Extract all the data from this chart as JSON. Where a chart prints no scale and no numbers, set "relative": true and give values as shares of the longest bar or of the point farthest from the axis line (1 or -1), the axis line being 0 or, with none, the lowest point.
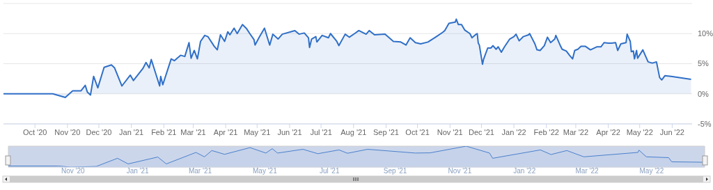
{
  "chart_data": [
    {
      "type": "area",
      "color": "#2f6fc7",
      "x": [
        "2020-09-01",
        "2020-10-18",
        "2020-10-30",
        "2020-11-06",
        "2020-11-14",
        "2020-11-18",
        "2020-11-20",
        "2020-11-23",
        "2020-11-26",
        "2020-11-30",
        "2020-12-06",
        "2020-12-13",
        "2020-12-16",
        "2020-12-23",
        "2020-12-31",
        "2021-01-03",
        "2021-01-12",
        "2021-01-15",
        "2021-01-18",
        "2021-01-20",
        "2021-01-28",
        "2021-01-29",
        "2021-01-31",
        "2021-02-08",
        "2021-02-11",
        "2021-02-17",
        "2021-02-21",
        "2021-02-25",
        "2021-02-27",
        "2021-03-02",
        "2021-03-05",
        "2021-03-08",
        "2021-03-12",
        "2021-03-15",
        "2021-03-21",
        "2021-03-24",
        "2021-03-27",
        "2021-03-31",
        "2021-04-03",
        "2021-04-05",
        "2021-04-09",
        "2021-04-12",
        "2021-04-17",
        "2021-04-21",
        "2021-04-24",
        "2021-04-28",
        "2021-04-29",
        "2021-05-03",
        "2021-05-08",
        "2021-05-13",
        "2021-05-16",
        "2021-05-21",
        "2021-05-25",
        "2021-06-06",
        "2021-06-10",
        "2021-06-15",
        "2021-06-19",
        "2021-06-20",
        "2021-06-22",
        "2021-06-26",
        "2021-06-27",
        "2021-07-02",
        "2021-07-08",
        "2021-07-10",
        "2021-07-16",
        "2021-07-18",
        "2021-07-24",
        "2021-07-28",
        "2021-08-02",
        "2021-08-06",
        "2021-08-13",
        "2021-08-16",
        "2021-08-21",
        "2021-08-31",
        "2021-09-08",
        "2021-09-15",
        "2021-09-20",
        "2021-09-24",
        "2021-09-29",
        "2021-10-04",
        "2021-10-11",
        "2021-10-19",
        "2021-10-25",
        "2021-10-27",
        "2021-10-31",
        "2021-11-06",
        "2021-11-07",
        "2021-11-09",
        "2021-11-12",
        "2021-11-15",
        "2021-11-20",
        "2021-11-22",
        "2021-11-26",
        "2021-11-27",
        "2021-11-28",
        "2021-11-29",
        "2021-12-02",
        "2021-12-03",
        "2021-12-07",
        "2021-12-10",
        "2021-12-12",
        "2021-12-15",
        "2021-12-17",
        "2021-12-20",
        "2021-12-23",
        "2021-12-28",
        "2022-01-01",
        "2022-01-03",
        "2022-01-06",
        "2022-01-10",
        "2022-01-15",
        "2022-01-16",
        "2022-01-21",
        "2022-01-23",
        "2022-01-26",
        "2022-01-30",
        "2022-02-02",
        "2022-02-05",
        "2022-02-09",
        "2022-02-10",
        "2022-02-14",
        "2022-02-16",
        "2022-02-20",
        "2022-02-23",
        "2022-02-26",
        "2022-02-28",
        "2022-03-03",
        "2022-03-06",
        "2022-03-10",
        "2022-03-15",
        "2022-03-21",
        "2022-03-25",
        "2022-03-28",
        "2022-04-01",
        "2022-04-04",
        "2022-04-08",
        "2022-04-10",
        "2022-04-13",
        "2022-04-18",
        "2022-04-19",
        "2022-04-22",
        "2022-04-23",
        "2022-04-25",
        "2022-04-26",
        "2022-04-28",
        "2022-04-29",
        "2022-05-04",
        "2022-05-06",
        "2022-05-09",
        "2022-05-13",
        "2022-05-17",
        "2022-05-20",
        "2022-05-22",
        "2022-05-25",
        "2022-05-31",
        "2022-06-19"
      ],
      "values": [
        0,
        0,
        -0.6,
        0.5,
        0.5,
        1.4,
        0.3,
        -0.2,
        2.9,
        1.0,
        4.4,
        4.8,
        4.3,
        1.3,
        3.1,
        2.2,
        4.2,
        5.2,
        4.3,
        5.7,
        1.3,
        2.9,
        1.5,
        5.8,
        5.5,
        6.4,
        6.2,
        8.5,
        5.9,
        7.2,
        5.8,
        8.7,
        9.7,
        9.5,
        7.9,
        7.3,
        9.8,
        8.7,
        10.3,
        9.8,
        10.9,
        10.0,
        11.5,
        10.8,
        10.0,
        9.0,
        8.1,
        9.4,
        10.9,
        8.1,
        9.9,
        9.1,
        9.9,
        10.5,
        9.9,
        10.1,
        9.3,
        7.7,
        9.1,
        9.5,
        8.6,
        9.7,
        9.3,
        10.0,
        8.7,
        8.0,
        9.9,
        9.4,
        10.0,
        10.5,
        9.9,
        10.5,
        9.8,
        9.9,
        8.7,
        8.6,
        8.1,
        9.3,
        8.5,
        8.3,
        8.6,
        9.5,
        10.2,
        10.5,
        11.7,
        11.9,
        12.4,
        11.5,
        11.5,
        10.6,
        10.0,
        9.3,
        9.9,
        10.0,
        8.4,
        8.1,
        4.9,
        5.7,
        7.6,
        7.6,
        8.0,
        7.4,
        7.8,
        6.9,
        7.8,
        9.1,
        9.5,
        9.9,
        8.8,
        9.5,
        9.8,
        10.0,
        8.3,
        7.3,
        7.2,
        8.0,
        9.4,
        8.5,
        9.1,
        9.7,
        8.1,
        7.4,
        7.1,
        6.4,
        5.8,
        7.2,
        7.4,
        7.9,
        7.9,
        7.3,
        7.8,
        7.8,
        8.5,
        8.4,
        8.4,
        8.5,
        7.2,
        8.3,
        8.5,
        9.9,
        8.7,
        7.0,
        7.1,
        5.8,
        7.2,
        5.9,
        7.3,
        6.5,
        5.3,
        5.1,
        5.3,
        2.7,
        2.3,
        3.0,
        2.9,
        2.4
      ],
      "xlim": [
        "2020-09-01",
        "2022-06-20"
      ],
      "xticks": [
        {
          "value": "2020-10-01",
          "label": "Oct '20"
        },
        {
          "value": "2020-11-01",
          "label": "Nov '20"
        },
        {
          "value": "2020-12-01",
          "label": "Dec '20"
        },
        {
          "value": "2021-01-01",
          "label": "Jan '21"
        },
        {
          "value": "2021-02-01",
          "label": "Feb '21"
        },
        {
          "value": "2021-03-01",
          "label": "Mar '21"
        },
        {
          "value": "2021-04-01",
          "label": "Apr '21"
        },
        {
          "value": "2021-05-01",
          "label": "May '21"
        },
        {
          "value": "2021-06-01",
          "label": "Jun '21"
        },
        {
          "value": "2021-07-01",
          "label": "Jul '21"
        },
        {
          "value": "2021-08-01",
          "label": "Aug '21"
        },
        {
          "value": "2021-09-01",
          "label": "Sep '21"
        },
        {
          "value": "2021-10-01",
          "label": "Oct '21"
        },
        {
          "value": "2021-11-01",
          "label": "Nov '21"
        },
        {
          "value": "2021-12-01",
          "label": "Dec '21"
        },
        {
          "value": "2022-01-01",
          "label": "Jan '22"
        },
        {
          "value": "2022-02-01",
          "label": "Feb '22"
        },
        {
          "value": "2022-03-01",
          "label": "Mar '22"
        },
        {
          "value": "2022-04-01",
          "label": "Apr '22"
        },
        {
          "value": "2022-05-01",
          "label": "May '22"
        },
        {
          "value": "2022-06-01",
          "label": "Jun '22"
        }
      ],
      "ylim": [
        -5,
        15
      ],
      "yticks": [
        {
          "value": -5,
          "label": "-5%"
        },
        {
          "value": 0,
          "label": "0%"
        },
        {
          "value": 5,
          "label": "5%"
        },
        {
          "value": 10,
          "label": "10%"
        },
        {
          "value": 15,
          "label": null
        }
      ],
      "grid": "y"
    },
    {
      "type": "area",
      "color": "#4a80cc",
      "relative": true,
      "tick_labels": "x",
      "x": [
        "2020-09-01",
        "2020-10-18",
        "2020-10-30",
        "2020-11-23",
        "2020-12-13",
        "2020-12-23",
        "2021-01-20",
        "2021-01-28",
        "2021-02-25",
        "2021-03-05",
        "2021-03-12",
        "2021-03-24",
        "2021-04-17",
        "2021-05-02",
        "2021-05-08",
        "2021-05-13",
        "2021-06-06",
        "2021-06-20",
        "2021-07-10",
        "2021-07-18",
        "2021-08-06",
        "2021-09-20",
        "2021-10-04",
        "2021-11-07",
        "2021-11-29",
        "2021-12-02",
        "2021-12-20",
        "2022-01-16",
        "2022-01-26",
        "2022-02-10",
        "2022-02-26",
        "2022-04-18",
        "2022-04-19",
        "2022-04-26",
        "2022-05-17",
        "2022-05-20",
        "2022-06-19"
      ],
      "values": [
        0.05,
        0.05,
        0,
        0.03,
        0.42,
        0.15,
        0.48,
        0.15,
        0.7,
        0.49,
        0.79,
        0.61,
        0.93,
        0.67,
        0.88,
        0.67,
        0.85,
        0.64,
        0.82,
        0.66,
        0.85,
        0.67,
        0.68,
        1,
        0.67,
        0.42,
        0.58,
        0.82,
        0.6,
        0.79,
        0.49,
        0.7,
        0.81,
        0.49,
        0.45,
        0.25,
        0.23
      ],
      "xlim": [
        "2020-09-01",
        "2022-06-20"
      ],
      "xticks": [
        {
          "value": "2020-11-01",
          "label": "Nov '20"
        },
        {
          "value": "2021-01-01",
          "label": "Jan '21"
        },
        {
          "value": "2021-03-01",
          "label": "Mar '21"
        },
        {
          "value": "2021-05-01",
          "label": "May '21"
        },
        {
          "value": "2021-07-01",
          "label": "Jul '21"
        },
        {
          "value": "2021-09-01",
          "label": "Sep '21"
        },
        {
          "value": "2021-11-01",
          "label": "Nov '21"
        },
        {
          "value": "2022-01-01",
          "label": "Jan '22"
        },
        {
          "value": "2022-03-01",
          "label": "Mar '22"
        },
        {
          "value": "2022-05-01",
          "label": "May '22"
        }
      ],
      "bands": [
        {
          "axis": "x",
          "from": "2020-09-01",
          "to": "2022-06-20",
          "color": "#ccd6eb"
        }
      ]
    }
  ]
}
